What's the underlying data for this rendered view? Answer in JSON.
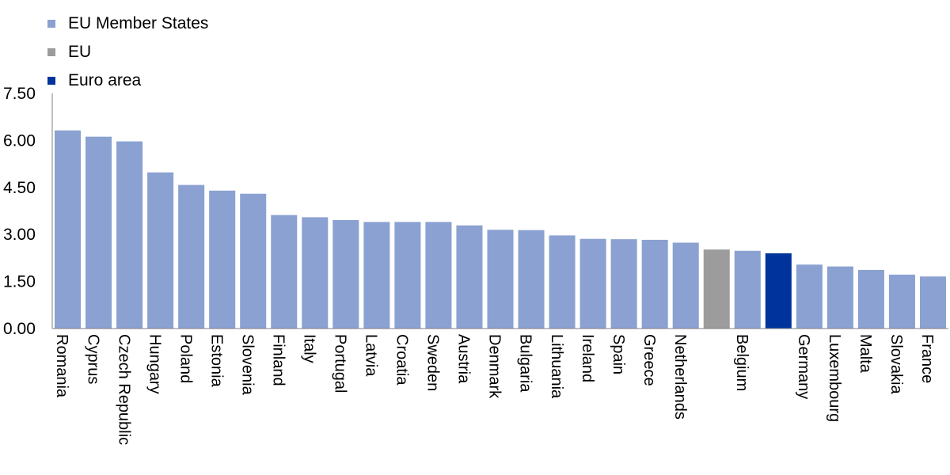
{
  "legend": [
    {
      "label": "EU Member States",
      "color": "#8aa1d1"
    },
    {
      "label": "EU",
      "color": "#9c9c9c"
    },
    {
      "label": "Euro area",
      "color": "#00349c"
    }
  ],
  "chart_data": {
    "type": "bar",
    "ylim": [
      0,
      7.5
    ],
    "yticks": [
      "0.00",
      "1.50",
      "3.00",
      "4.50",
      "6.00",
      "7.50"
    ],
    "grid": false,
    "legend_position": "top-left",
    "categories": [
      "Romania",
      "Cyprus",
      "Czech Republic",
      "Hungary",
      "Poland",
      "Estonia",
      "Slovenia",
      "Finland",
      "Italy",
      "Portugal",
      "Latvia",
      "Croatia",
      "Sweden",
      "Austria",
      "Denmark",
      "Bulgaria",
      "Lithuania",
      "Ireland",
      "Spain",
      "Greece",
      "Netherlands",
      "EU",
      "Belgium",
      "Euro area",
      "Germany",
      "Luxembourg",
      "Malta",
      "Slovakia",
      "France"
    ],
    "tick_labels": [
      "Romania",
      "Cyprus",
      "Czech Republic",
      "Hungary",
      "Poland",
      "Estonia",
      "Slovenia",
      "Finland",
      "Italy",
      "Portugal",
      "Latvia",
      "Croatia",
      "Sweden",
      "Austria",
      "Denmark",
      "Bulgaria",
      "Lithuania",
      "Ireland",
      "Spain",
      "Greece",
      "Netherlands",
      "",
      "Belgium",
      "",
      "Germany",
      "Luxembourg",
      "Malta",
      "Slovakia",
      "France"
    ],
    "values": [
      6.32,
      6.12,
      5.97,
      4.98,
      4.58,
      4.4,
      4.3,
      3.62,
      3.55,
      3.46,
      3.4,
      3.4,
      3.4,
      3.29,
      3.15,
      3.14,
      2.97,
      2.86,
      2.85,
      2.83,
      2.74,
      2.52,
      2.48,
      2.4,
      2.04,
      1.98,
      1.87,
      1.72,
      1.66
    ],
    "groups": [
      "EU Member States",
      "EU Member States",
      "EU Member States",
      "EU Member States",
      "EU Member States",
      "EU Member States",
      "EU Member States",
      "EU Member States",
      "EU Member States",
      "EU Member States",
      "EU Member States",
      "EU Member States",
      "EU Member States",
      "EU Member States",
      "EU Member States",
      "EU Member States",
      "EU Member States",
      "EU Member States",
      "EU Member States",
      "EU Member States",
      "EU Member States",
      "EU",
      "EU Member States",
      "Euro area",
      "EU Member States",
      "EU Member States",
      "EU Member States",
      "EU Member States",
      "EU Member States"
    ]
  }
}
